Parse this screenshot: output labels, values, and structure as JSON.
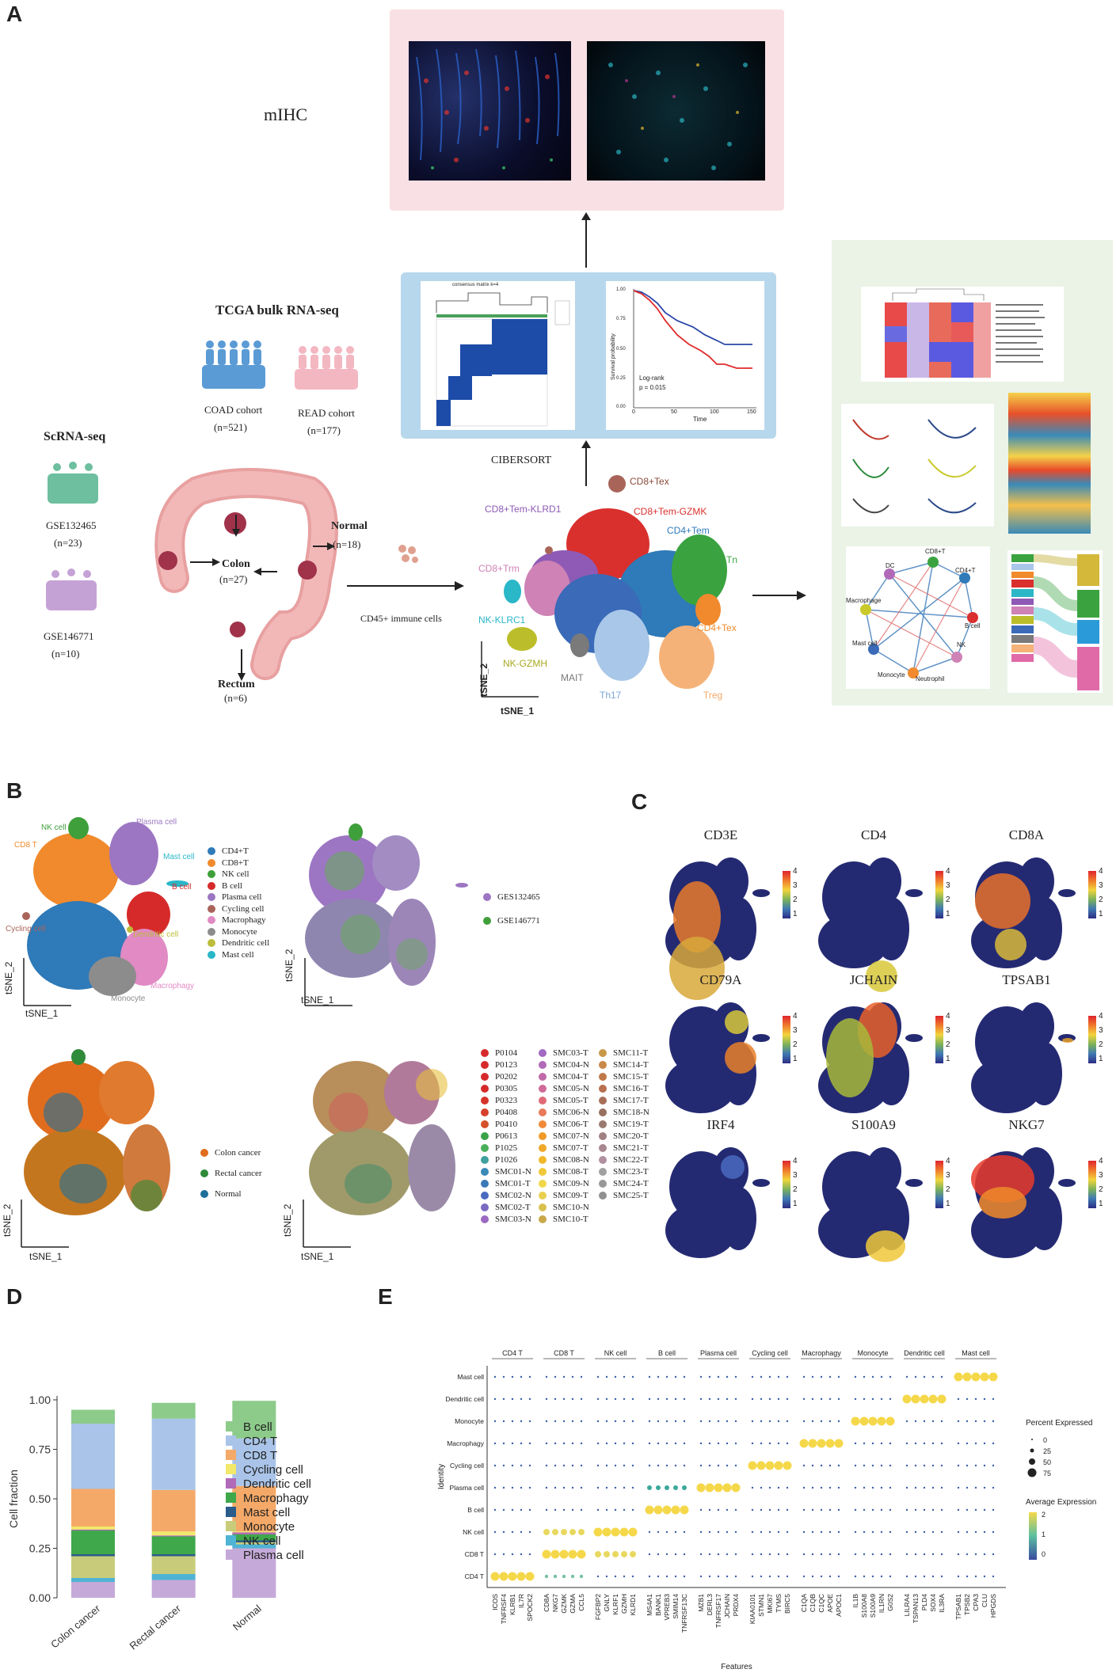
{
  "panels": {
    "A": "A",
    "B": "B",
    "C": "C",
    "D": "D",
    "E": "E"
  },
  "panelA": {
    "mihc_label": "mIHC",
    "tcga_title": "TCGA bulk RNA-seq",
    "coad_label": "COAD cohort",
    "coad_n": "(n=521)",
    "read_label": "READ cohort",
    "read_n": "(n=177)",
    "scrna_title": "ScRNA-seq",
    "gse1": "GSE132465",
    "gse1_n": "(n=23)",
    "gse2": "GSE146771",
    "gse2_n": "(n=10)",
    "normal_label": "Normal",
    "normal_n": "(n=18)",
    "colon_label": "Colon",
    "colon_n": "(n=27)",
    "rectum_label": "Rectum",
    "rectum_n": "(n=6)",
    "cibersort": "CIBERSORT",
    "cd45": "CD45+ immune cells",
    "km_logrank": "Log-rank",
    "km_p": "p = 0.015",
    "km_xlabel": "Time",
    "km_ylabel": "Survival probability",
    "km_xticks": [
      "0",
      "50",
      "100",
      "150"
    ],
    "km_yticks": [
      "1.00",
      "0.75",
      "0.50",
      "0.25",
      "0.00"
    ],
    "consensus_title": "consensus matrix k=4",
    "tsne_x": "tSNE_1",
    "tsne_y": "tSNE_2",
    "clusters": {
      "cd8tex": "CD8+Tex",
      "cd8temklrd1": "CD8+Tem-KLRD1",
      "cd8temgzmk": "CD8+Tem-GZMK",
      "cd4tem": "CD4+Tem",
      "cd4tn": "CD4+Tn",
      "cd8trm": "CD8+Trm",
      "nkklrc1": "NK-KLRC1",
      "nkgzmh": "NK-GZMH",
      "mait": "MAIT",
      "th17": "Th17",
      "treg": "Treg",
      "cd4tex": "CD4+Tex"
    },
    "network_nodes": [
      "DC",
      "CD8+T",
      "CD4+T",
      "B cell",
      "NK",
      "Neutrophil",
      "Monocyte",
      "Mast cell",
      "Macrophage"
    ]
  },
  "panelB": {
    "tsne_x": "tSNE_1",
    "tsne_y": "tSNE_2",
    "cell_labels": {
      "nk": "NK cell",
      "plasma": "Plasma cell",
      "cd8": "CD8 T",
      "mast": "Mast cell",
      "bcell": "B cell",
      "cycling": "Cycling cell",
      "dendritic": "Dendritic cell",
      "cd4": "CD4 T",
      "macro": "Macrophagy",
      "mono": "Monocyte"
    },
    "celltype_legend": [
      {
        "label": "CD4+T",
        "color": "#2f7ab8"
      },
      {
        "label": "CD8+T",
        "color": "#f08a2c"
      },
      {
        "label": "NK cell",
        "color": "#3f9f3a"
      },
      {
        "label": "B cell",
        "color": "#d62a2a"
      },
      {
        "label": "Plasma cell",
        "color": "#9c76c2"
      },
      {
        "label": "Cycling cell",
        "color": "#a9645a"
      },
      {
        "label": "Macrophagy",
        "color": "#e18ac4"
      },
      {
        "label": "Monocyte",
        "color": "#8c8c8c"
      },
      {
        "label": "Dendritic cell",
        "color": "#bcbd3a"
      },
      {
        "label": "Mast cell",
        "color": "#2ab7c8"
      }
    ],
    "dataset_legend": [
      {
        "label": "GES132465",
        "color": "#9c76c2"
      },
      {
        "label": "GSE146771",
        "color": "#3f9f3a"
      }
    ],
    "tissue_legend": [
      {
        "label": "Colon cancer",
        "color": "#e06d1e"
      },
      {
        "label": "Rectal cancer",
        "color": "#2f8a3a"
      },
      {
        "label": "Normal",
        "color": "#1f6f9a"
      }
    ],
    "sample_legend_col1": [
      {
        "label": "P0104",
        "color": "#d62a2a"
      },
      {
        "label": "P0123",
        "color": "#d62a2a"
      },
      {
        "label": "P0202",
        "color": "#d62a2a"
      },
      {
        "label": "P0305",
        "color": "#d62a2a"
      },
      {
        "label": "P0323",
        "color": "#d6332a"
      },
      {
        "label": "P0408",
        "color": "#d6402a"
      },
      {
        "label": "P0410",
        "color": "#d6502a"
      },
      {
        "label": "P0613",
        "color": "#3aa34a"
      },
      {
        "label": "P1025",
        "color": "#4aaf5a"
      },
      {
        "label": "P1026",
        "color": "#3fa0a0"
      },
      {
        "label": "SMC01-N",
        "color": "#3a8ab8"
      },
      {
        "label": "SMC01-T",
        "color": "#3a7ab8"
      },
      {
        "label": "SMC02-N",
        "color": "#4a6ac0"
      },
      {
        "label": "SMC02-T",
        "color": "#7a6ac0"
      },
      {
        "label": "SMC03-N",
        "color": "#9c6ac2"
      }
    ],
    "sample_legend_col2": [
      {
        "label": "SMC03-T",
        "color": "#a26ac2"
      },
      {
        "label": "SMC04-N",
        "color": "#b06ab8"
      },
      {
        "label": "SMC04-T",
        "color": "#c06aa8"
      },
      {
        "label": "SMC05-N",
        "color": "#d06a98"
      },
      {
        "label": "SMC05-T",
        "color": "#e06a78"
      },
      {
        "label": "SMC06-N",
        "color": "#e87a5a"
      },
      {
        "label": "SMC06-T",
        "color": "#f08a3a"
      },
      {
        "label": "SMC07-N",
        "color": "#f09a2a"
      },
      {
        "label": "SMC07-T",
        "color": "#f0a82a"
      },
      {
        "label": "SMC08-N",
        "color": "#f0b82a"
      },
      {
        "label": "SMC08-T",
        "color": "#f0c83a"
      },
      {
        "label": "SMC09-N",
        "color": "#f0d84a"
      },
      {
        "label": "SMC09-T",
        "color": "#e8d050"
      },
      {
        "label": "SMC10-N",
        "color": "#d8c050"
      },
      {
        "label": "SMC10-T",
        "color": "#c8a848"
      }
    ],
    "sample_legend_col3": [
      {
        "label": "SMC11-T",
        "color": "#c89848"
      },
      {
        "label": "SMC14-T",
        "color": "#c88848"
      },
      {
        "label": "SMC15-T",
        "color": "#c07848"
      },
      {
        "label": "SMC16-T",
        "color": "#b87050"
      },
      {
        "label": "SMC17-T",
        "color": "#a87058"
      },
      {
        "label": "SMC18-N",
        "color": "#987060"
      },
      {
        "label": "SMC19-T",
        "color": "#9a7a70"
      },
      {
        "label": "SMC20-T",
        "color": "#a08080"
      },
      {
        "label": "SMC21-T",
        "color": "#a88890"
      },
      {
        "label": "SMC22-T",
        "color": "#b090a0"
      },
      {
        "label": "SMC23-T",
        "color": "#a0a0a0"
      },
      {
        "label": "SMC24-T",
        "color": "#989898"
      },
      {
        "label": "SMC25-T",
        "color": "#909090"
      }
    ]
  },
  "panelC": {
    "genes": [
      "CD3E",
      "CD4",
      "CD8A",
      "CD79A",
      "JCHAIN",
      "TPSAB1",
      "IRF4",
      "S100A9",
      "NKG7"
    ],
    "cbar_ticks": [
      "4",
      "3",
      "2",
      "1"
    ]
  },
  "chart_data": {
    "type": "bar",
    "stacked": true,
    "categories": [
      "Colon cancer",
      "Rectal cancer",
      "Normal"
    ],
    "ylabel": "Cell fraction",
    "xlabel": "",
    "ylim": [
      0,
      1
    ],
    "yticks": [
      "0.00",
      "0.25",
      "0.50",
      "0.75",
      "1.00"
    ],
    "series": [
      {
        "name": "Plasma cell",
        "color": "#c5a9d8",
        "values": [
          0.08,
          0.09,
          0.25
        ]
      },
      {
        "name": "NK cell",
        "color": "#4fb3d4",
        "values": [
          0.02,
          0.03,
          0.02
        ]
      },
      {
        "name": "Monocyte",
        "color": "#c8cc7a",
        "values": [
          0.11,
          0.09,
          0.01
        ]
      },
      {
        "name": "Mast cell",
        "color": "#2b5c8a",
        "values": [
          0.01,
          0.01,
          0.01
        ]
      },
      {
        "name": "Macrophagy",
        "color": "#3fa84a",
        "values": [
          0.12,
          0.09,
          0.03
        ]
      },
      {
        "name": "Dendritic cell",
        "color": "#b06ab8",
        "values": [
          0.005,
          0.005,
          0.01
        ]
      },
      {
        "name": "Cycling cell",
        "color": "#f2e86a",
        "values": [
          0.015,
          0.02,
          0.005
        ]
      },
      {
        "name": "CD8 T",
        "color": "#f4a968",
        "values": [
          0.19,
          0.21,
          0.23
        ]
      },
      {
        "name": "CD4 T",
        "color": "#a9c4e8",
        "values": [
          0.33,
          0.36,
          0.24
        ]
      },
      {
        "name": "B cell",
        "color": "#8ccb8a",
        "values": [
          0.07,
          0.08,
          0.19
        ]
      }
    ],
    "legend_order": [
      "B cell",
      "CD4 T",
      "CD8 T",
      "Cycling cell",
      "Dendritic cell",
      "Macrophagy",
      "Mast cell",
      "Monocyte",
      "NK cell",
      "Plasma cell"
    ]
  },
  "panelE": {
    "ylabel": "Identity",
    "xlabel": "Features",
    "groups": [
      "CD4 T",
      "CD8 T",
      "NK cell",
      "B cell",
      "Plasma cell",
      "Cycling cell",
      "Macrophagy",
      "Monocyte",
      "Dendritic cell",
      "Mast cell"
    ],
    "rows": [
      "Mast cell",
      "Dendritic cell",
      "Monocyte",
      "Macrophagy",
      "Cycling cell",
      "Plasma cell",
      "B cell",
      "NK cell",
      "CD8 T",
      "CD4 T"
    ],
    "features": [
      [
        "ICOS",
        "TNFRSF4",
        "KLRB1",
        "IL7R",
        "SPOCK2"
      ],
      [
        "CD8A",
        "NKG7",
        "GZMK",
        "GZMA",
        "CCL5"
      ],
      [
        "FGFBP2",
        "GNLY",
        "KLRF1",
        "GZMH",
        "KLRD1"
      ],
      [
        "MS4A1",
        "BANK1",
        "VPREB3",
        "SMIM14",
        "TNFRSF13C"
      ],
      [
        "MZB1",
        "DERL3",
        "TNFRSF17",
        "JCHAIN",
        "PRDX4"
      ],
      [
        "KIAA0101",
        "STMN1",
        "MKI67",
        "TYMS",
        "BIRC5"
      ],
      [
        "C1QA",
        "C1QB",
        "C1QC",
        "APOE",
        "APOC1"
      ],
      [
        "IL1B",
        "S100A8",
        "S100A9",
        "IL1RN",
        "G0S2"
      ],
      [
        "LILRA4",
        "TSPAN13",
        "PLD4",
        "SOX4",
        "IL3RA"
      ],
      [
        "TPSAB1",
        "TPSB2",
        "CPA3",
        "CLU",
        "HPGDS"
      ]
    ],
    "pct_title": "Percent Expressed",
    "pct_values": [
      "0",
      "25",
      "50",
      "75"
    ],
    "avg_title": "Average Expression",
    "avg_ticks": [
      "2",
      "1",
      "0"
    ]
  }
}
